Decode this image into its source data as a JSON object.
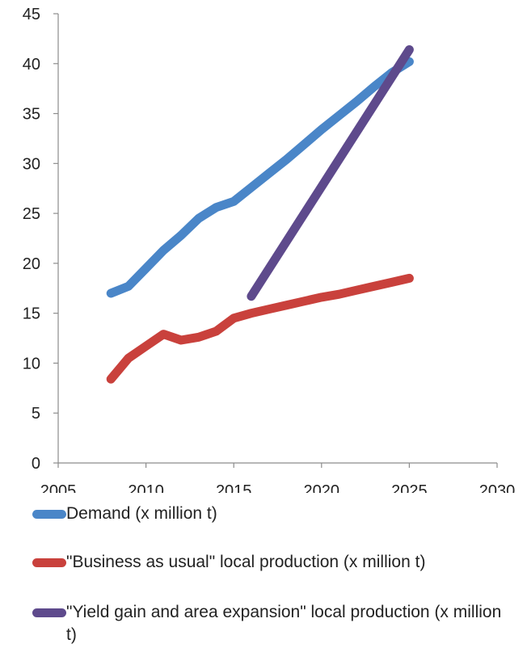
{
  "chart_data": {
    "type": "line",
    "title": "",
    "xlabel": "",
    "ylabel": "",
    "xlim": [
      2005,
      2030
    ],
    "ylim": [
      0,
      45
    ],
    "x_ticks": [
      "2005",
      "2010",
      "2015",
      "2020",
      "2025",
      "2030"
    ],
    "y_ticks": [
      "0",
      "5",
      "10",
      "15",
      "20",
      "25",
      "30",
      "35",
      "40",
      "45"
    ],
    "grid": false,
    "legend_position": "bottom",
    "series": [
      {
        "name": "Demand (x million t)",
        "color": "#4a86c8",
        "x": [
          2008,
          2009,
          2010,
          2011,
          2012,
          2013,
          2014,
          2015,
          2016,
          2017,
          2018,
          2019,
          2020,
          2021,
          2022,
          2023,
          2024,
          2025
        ],
        "y": [
          17.0,
          17.7,
          19.5,
          21.3,
          22.8,
          24.5,
          25.6,
          26.2,
          27.6,
          29.0,
          30.4,
          31.9,
          33.4,
          34.8,
          36.2,
          37.7,
          39.1,
          40.2
        ]
      },
      {
        "name": "\"Business as usual\" local production (x million t)",
        "color": "#c9413c",
        "x": [
          2008,
          2009,
          2010,
          2011,
          2012,
          2013,
          2014,
          2015,
          2016,
          2017,
          2018,
          2019,
          2020,
          2021,
          2022,
          2023,
          2024,
          2025
        ],
        "y": [
          8.4,
          10.5,
          11.7,
          12.9,
          12.3,
          12.6,
          13.2,
          14.5,
          15.0,
          15.4,
          15.8,
          16.2,
          16.6,
          16.9,
          17.3,
          17.7,
          18.1,
          18.5
        ]
      },
      {
        "name": "\"Yield gain and area expansion\" local production (x million t)",
        "color": "#5e4a8c",
        "x": [
          2016,
          2025
        ],
        "y": [
          16.7,
          41.4
        ]
      }
    ]
  }
}
